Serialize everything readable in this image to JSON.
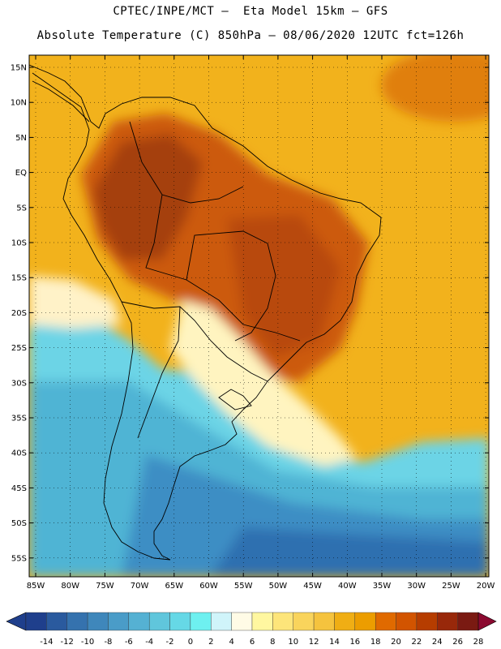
{
  "header": {
    "line1": "CPTEC/INPE/MCT –  Eta Model 15km – GFS",
    "line2": "Absolute Temperature (C) 850hPa – 08/06/2020 12UTC fct=126h"
  },
  "lat_labels": [
    "15N",
    "10N",
    "5N",
    "EQ",
    "5S",
    "10S",
    "15S",
    "20S",
    "25S",
    "30S",
    "35S",
    "40S",
    "45S",
    "50S",
    "55S"
  ],
  "lon_labels": [
    "85W",
    "80W",
    "75W",
    "70W",
    "65W",
    "60W",
    "55W",
    "50W",
    "45W",
    "40W",
    "35W",
    "30W",
    "25W",
    "20W"
  ],
  "colorbar": {
    "labels": [
      "-14",
      "-12",
      "-10",
      "-8",
      "-6",
      "-4",
      "-2",
      "0",
      "2",
      "4",
      "6",
      "8",
      "10",
      "12",
      "14",
      "16",
      "18",
      "20",
      "22",
      "24",
      "26",
      "28"
    ],
    "colors": [
      "#1f3f8c",
      "#2a5a9e",
      "#3572ae",
      "#3f87bb",
      "#4a9cc8",
      "#55b1d3",
      "#60c6dc",
      "#66d8e6",
      "#6ef0f0",
      "#d0f4fa",
      "#fffbe6",
      "#fff7a0",
      "#fde57a",
      "#f9d45c",
      "#f5c33e",
      "#f0ae14",
      "#ec9d00",
      "#e06a00",
      "#d25400",
      "#b63d00",
      "#98280a",
      "#7a1a12",
      "#8b0a30"
    ]
  }
}
